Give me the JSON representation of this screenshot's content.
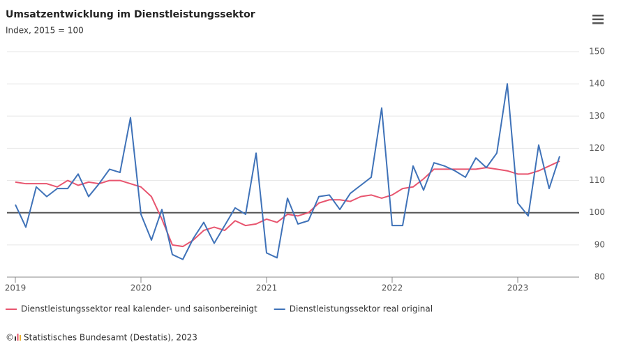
{
  "chart_data": {
    "type": "line",
    "title": "Umsatzentwicklung im Dienstleistungssektor",
    "subtitle": "Index, 2015 = 100",
    "categories": [
      "2019",
      null,
      null,
      null,
      null,
      null,
      null,
      null,
      null,
      null,
      null,
      null,
      "2020",
      null,
      null,
      null,
      null,
      null,
      null,
      null,
      null,
      null,
      null,
      null,
      "2021",
      null,
      null,
      null,
      null,
      null,
      null,
      null,
      null,
      null,
      null,
      null,
      "2022",
      null,
      null,
      null,
      null,
      null,
      null,
      null,
      null,
      null,
      null,
      null,
      "2023",
      null,
      null,
      null,
      null
    ],
    "series": [
      {
        "name": "Dienstleistungssektor real kalender- und saisonbereinigt",
        "color": "#e8556f",
        "values": [
          109.5,
          109,
          109,
          109,
          108,
          110,
          108.5,
          109.5,
          109,
          110,
          110,
          109,
          108,
          105,
          98,
          90,
          89.5,
          91.5,
          94.5,
          95.5,
          94.5,
          97.5,
          96,
          96.5,
          98,
          97,
          99.5,
          99,
          100,
          103,
          104,
          104,
          103.5,
          105,
          105.5,
          104.5,
          105.5,
          107.5,
          108,
          110.5,
          113.5,
          113.5,
          113.5,
          113.5,
          113.5,
          114,
          113.5,
          113,
          112,
          112,
          113,
          114.5,
          116
        ]
      },
      {
        "name": "Dienstleistungssektor real original",
        "color": "#3f72b8",
        "values": [
          102.5,
          95.5,
          108,
          105,
          107.5,
          107.5,
          112,
          105,
          109,
          113.5,
          112.5,
          129.5,
          99.5,
          91.5,
          101,
          87,
          85.5,
          92,
          97,
          90.5,
          96,
          101.5,
          99.5,
          118.5,
          87.5,
          86,
          104.5,
          96.5,
          97.5,
          105,
          105.5,
          101,
          106,
          108.5,
          111,
          132.5,
          96,
          96,
          114.5,
          107,
          115.5,
          114.5,
          113,
          111,
          117,
          114,
          118.5,
          140,
          103,
          99,
          121,
          107.5,
          117.5
        ]
      }
    ],
    "ylim": [
      80,
      150
    ],
    "yticks": [
      80,
      90,
      100,
      110,
      120,
      130,
      140,
      150
    ],
    "grid": true,
    "reference_line": 100,
    "legend": "bottom-left",
    "copyright": "©",
    "source": "Statistisches Bundesamt (Destatis), 2023"
  }
}
